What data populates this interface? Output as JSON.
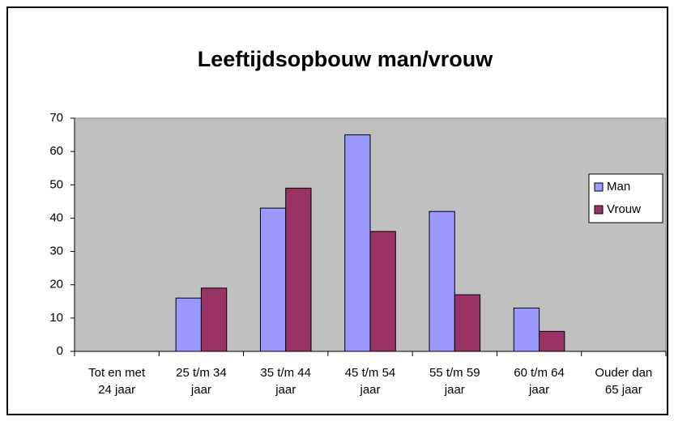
{
  "chart_data": {
    "type": "bar",
    "title": "Leeftijdsopbouw man/vrouw",
    "categories": [
      "Tot en met 24 jaar",
      "25 t/m 34 jaar",
      "35 t/m 44 jaar",
      "45 t/m 54 jaar",
      "55 t/m 59 jaar",
      "60 t/m 64 jaar",
      "Ouder dan 65 jaar"
    ],
    "series": [
      {
        "name": "Man",
        "color": "#9999ff",
        "values": [
          0,
          16,
          43,
          65,
          42,
          13,
          0
        ]
      },
      {
        "name": "Vrouw",
        "color": "#993366",
        "values": [
          0,
          19,
          49,
          36,
          17,
          6,
          0
        ]
      }
    ],
    "ylim": [
      0,
      70
    ],
    "yticks": [
      0,
      10,
      20,
      30,
      40,
      50,
      60,
      70
    ],
    "legend": "right",
    "plot_background": "#c0c0c0"
  }
}
